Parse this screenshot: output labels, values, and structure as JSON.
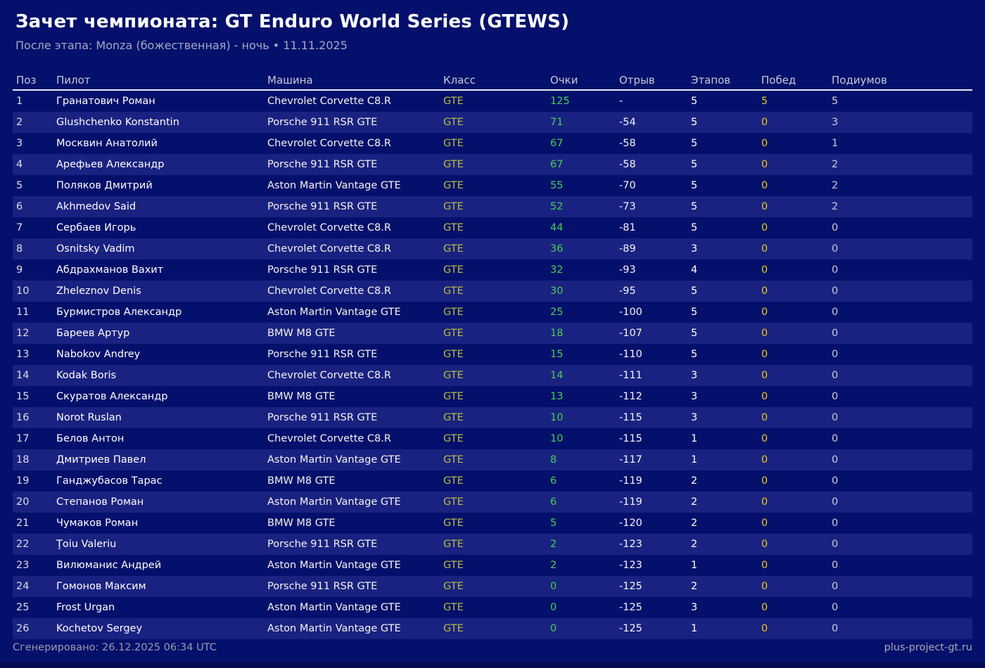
{
  "header": {
    "title": "Зачет чемпионата: GT Enduro World Series (GTEWS)",
    "subtitle": "После этапа: Monza (божественная) - ночь • 11.11.2025"
  },
  "table": {
    "columns": [
      "Поз",
      "Пилот",
      "Машина",
      "Класс",
      "Очки",
      "Отрыв",
      "Этапов",
      "Побед",
      "Подиумов"
    ],
    "rows": [
      {
        "pos": "1",
        "pilot": "Гранатович Роман",
        "car": "Chevrolet Corvette C8.R",
        "class": "GTE",
        "points": "125",
        "gap": "-",
        "stages": "5",
        "wins": "5",
        "podiums": "5"
      },
      {
        "pos": "2",
        "pilot": "Glushchenko Konstantin",
        "car": "Porsche 911 RSR GTE",
        "class": "GTE",
        "points": "71",
        "gap": "-54",
        "stages": "5",
        "wins": "0",
        "podiums": "3"
      },
      {
        "pos": "3",
        "pilot": "Москвин Анатолий",
        "car": "Chevrolet Corvette C8.R",
        "class": "GTE",
        "points": "67",
        "gap": "-58",
        "stages": "5",
        "wins": "0",
        "podiums": "1"
      },
      {
        "pos": "4",
        "pilot": "Арефьев Александр",
        "car": "Porsche 911 RSR GTE",
        "class": "GTE",
        "points": "67",
        "gap": "-58",
        "stages": "5",
        "wins": "0",
        "podiums": "2"
      },
      {
        "pos": "5",
        "pilot": "Поляков Дмитрий",
        "car": "Aston Martin Vantage GTE",
        "class": "GTE",
        "points": "55",
        "gap": "-70",
        "stages": "5",
        "wins": "0",
        "podiums": "2"
      },
      {
        "pos": "6",
        "pilot": "Akhmedov Said",
        "car": "Porsche 911 RSR GTE",
        "class": "GTE",
        "points": "52",
        "gap": "-73",
        "stages": "5",
        "wins": "0",
        "podiums": "2"
      },
      {
        "pos": "7",
        "pilot": "Сербаев Игорь",
        "car": "Chevrolet Corvette C8.R",
        "class": "GTE",
        "points": "44",
        "gap": "-81",
        "stages": "5",
        "wins": "0",
        "podiums": "0"
      },
      {
        "pos": "8",
        "pilot": "Osnitsky Vadim",
        "car": "Chevrolet Corvette C8.R",
        "class": "GTE",
        "points": "36",
        "gap": "-89",
        "stages": "3",
        "wins": "0",
        "podiums": "0"
      },
      {
        "pos": "9",
        "pilot": "Абдрахманов Вахит",
        "car": "Porsche 911 RSR GTE",
        "class": "GTE",
        "points": "32",
        "gap": "-93",
        "stages": "4",
        "wins": "0",
        "podiums": "0"
      },
      {
        "pos": "10",
        "pilot": "Zheleznov Denis",
        "car": "Chevrolet Corvette C8.R",
        "class": "GTE",
        "points": "30",
        "gap": "-95",
        "stages": "5",
        "wins": "0",
        "podiums": "0"
      },
      {
        "pos": "11",
        "pilot": "Бурмистров Александр",
        "car": "Aston Martin Vantage GTE",
        "class": "GTE",
        "points": "25",
        "gap": "-100",
        "stages": "5",
        "wins": "0",
        "podiums": "0"
      },
      {
        "pos": "12",
        "pilot": "Бареев Артур",
        "car": "BMW M8 GTE",
        "class": "GTE",
        "points": "18",
        "gap": "-107",
        "stages": "5",
        "wins": "0",
        "podiums": "0"
      },
      {
        "pos": "13",
        "pilot": "Nabokov Andrey",
        "car": "Porsche 911 RSR GTE",
        "class": "GTE",
        "points": "15",
        "gap": "-110",
        "stages": "5",
        "wins": "0",
        "podiums": "0"
      },
      {
        "pos": "14",
        "pilot": "Kodak Boris",
        "car": "Chevrolet Corvette C8.R",
        "class": "GTE",
        "points": "14",
        "gap": "-111",
        "stages": "3",
        "wins": "0",
        "podiums": "0"
      },
      {
        "pos": "15",
        "pilot": "Скуратов Александр",
        "car": "BMW M8 GTE",
        "class": "GTE",
        "points": "13",
        "gap": "-112",
        "stages": "3",
        "wins": "0",
        "podiums": "0"
      },
      {
        "pos": "16",
        "pilot": "Norot Ruslan",
        "car": "Porsche 911 RSR GTE",
        "class": "GTE",
        "points": "10",
        "gap": "-115",
        "stages": "3",
        "wins": "0",
        "podiums": "0"
      },
      {
        "pos": "17",
        "pilot": "Белов Антон",
        "car": "Chevrolet Corvette C8.R",
        "class": "GTE",
        "points": "10",
        "gap": "-115",
        "stages": "1",
        "wins": "0",
        "podiums": "0"
      },
      {
        "pos": "18",
        "pilot": "Дмитриев Павел",
        "car": "Aston Martin Vantage GTE",
        "class": "GTE",
        "points": "8",
        "gap": "-117",
        "stages": "1",
        "wins": "0",
        "podiums": "0"
      },
      {
        "pos": "19",
        "pilot": "Ганджубасов Тарас",
        "car": "BMW M8 GTE",
        "class": "GTE",
        "points": "6",
        "gap": "-119",
        "stages": "2",
        "wins": "0",
        "podiums": "0"
      },
      {
        "pos": "20",
        "pilot": "Степанов Роман",
        "car": "Aston Martin Vantage GTE",
        "class": "GTE",
        "points": "6",
        "gap": "-119",
        "stages": "2",
        "wins": "0",
        "podiums": "0"
      },
      {
        "pos": "21",
        "pilot": "Чумаков Роман",
        "car": "BMW M8 GTE",
        "class": "GTE",
        "points": "5",
        "gap": "-120",
        "stages": "2",
        "wins": "0",
        "podiums": "0"
      },
      {
        "pos": "22",
        "pilot": "Ţoiu Valeriu",
        "car": "Porsche 911 RSR GTE",
        "class": "GTE",
        "points": "2",
        "gap": "-123",
        "stages": "2",
        "wins": "0",
        "podiums": "0"
      },
      {
        "pos": "23",
        "pilot": "Вилюманис Андрей",
        "car": "Aston Martin Vantage GTE",
        "class": "GTE",
        "points": "2",
        "gap": "-123",
        "stages": "1",
        "wins": "0",
        "podiums": "0"
      },
      {
        "pos": "24",
        "pilot": "Гомонов Максим",
        "car": "Porsche 911 RSR GTE",
        "class": "GTE",
        "points": "0",
        "gap": "-125",
        "stages": "2",
        "wins": "0",
        "podiums": "0"
      },
      {
        "pos": "25",
        "pilot": "Frost Urgan",
        "car": "Aston Martin Vantage GTE",
        "class": "GTE",
        "points": "0",
        "gap": "-125",
        "stages": "3",
        "wins": "0",
        "podiums": "0"
      },
      {
        "pos": "26",
        "pilot": "Kochetov Sergey",
        "car": "Aston Martin Vantage GTE",
        "class": "GTE",
        "points": "0",
        "gap": "-125",
        "stages": "1",
        "wins": "0",
        "podiums": "0"
      }
    ]
  },
  "footer": {
    "generated": "Сгенерировано: 26.12.2025 06:34 UTC",
    "site": "plus-project-gt.ru"
  },
  "colors": {
    "background": "#04106b",
    "row_stripe": "#192280",
    "class_gte": "#b9bc3e",
    "points_green": "#46d054",
    "wins_gold": "#e8c818",
    "header_text": "#c6c9d6"
  }
}
